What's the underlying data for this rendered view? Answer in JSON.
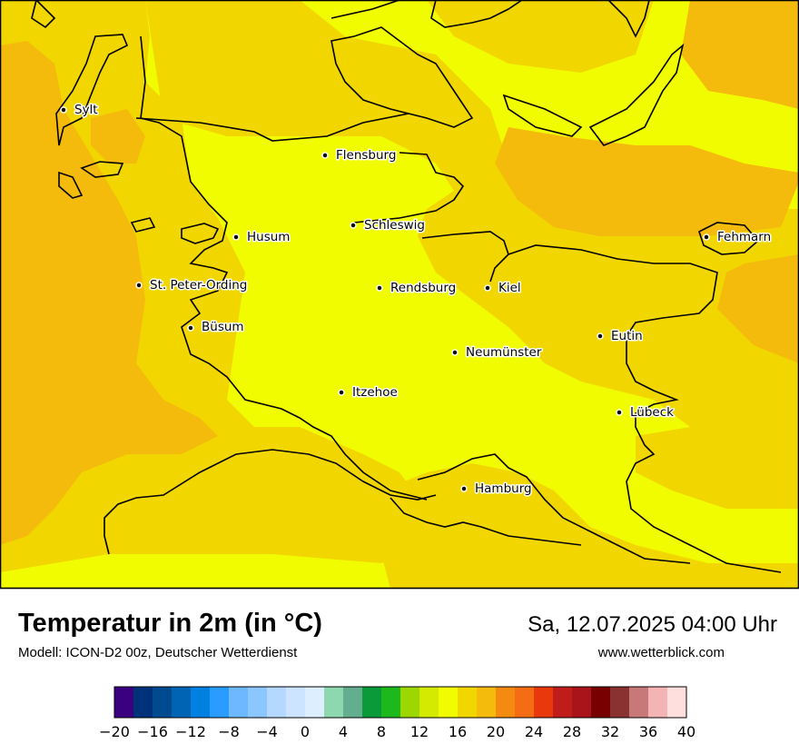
{
  "title": "Temperatur in 2m (in °C)",
  "model": "Modell: ICON-D2 00z, Deutscher Wetterdienst",
  "datetime": "Sa, 12.07.2025 04:00 Uhr",
  "website": "www.wetterblick.com",
  "cities": [
    {
      "name": "Sylt"
    },
    {
      "name": "Flensburg"
    },
    {
      "name": "Schleswig"
    },
    {
      "name": "Husum"
    },
    {
      "name": "St. Peter-Ording"
    },
    {
      "name": "Rendsburg"
    },
    {
      "name": "Kiel"
    },
    {
      "name": "Fehmarn"
    },
    {
      "name": "Büsum"
    },
    {
      "name": "Eutin"
    },
    {
      "name": "Neumünster"
    },
    {
      "name": "Itzehoe"
    },
    {
      "name": "Lübeck"
    },
    {
      "name": "Hamburg"
    }
  ],
  "legend": {
    "tick_labels": [
      "−20",
      "−16",
      "−12",
      "−8",
      "−4",
      "0",
      "4",
      "8",
      "12",
      "16",
      "20",
      "24",
      "28",
      "32",
      "36",
      "40"
    ],
    "colors": [
      "#3a0080",
      "#00327a",
      "#004a90",
      "#0064b4",
      "#0080e0",
      "#2a9cff",
      "#6eb8ff",
      "#8cc6ff",
      "#b4d8ff",
      "#cce4ff",
      "#ddeeff",
      "#8ed8b0",
      "#62ae8e",
      "#0a9a3a",
      "#1cb81c",
      "#9cd800",
      "#d4ea00",
      "#f2fc00",
      "#f2d600",
      "#f4ba0c",
      "#f48a10",
      "#f46c14",
      "#e8380c",
      "#c01c1c",
      "#a8141a",
      "#780000",
      "#8a3232",
      "#c87878",
      "#f4b4b4",
      "#ffdede"
    ]
  },
  "field_colors": {
    "low": "#f2fc00",
    "mid": "#f2d600",
    "high": "#f4ba0c"
  }
}
